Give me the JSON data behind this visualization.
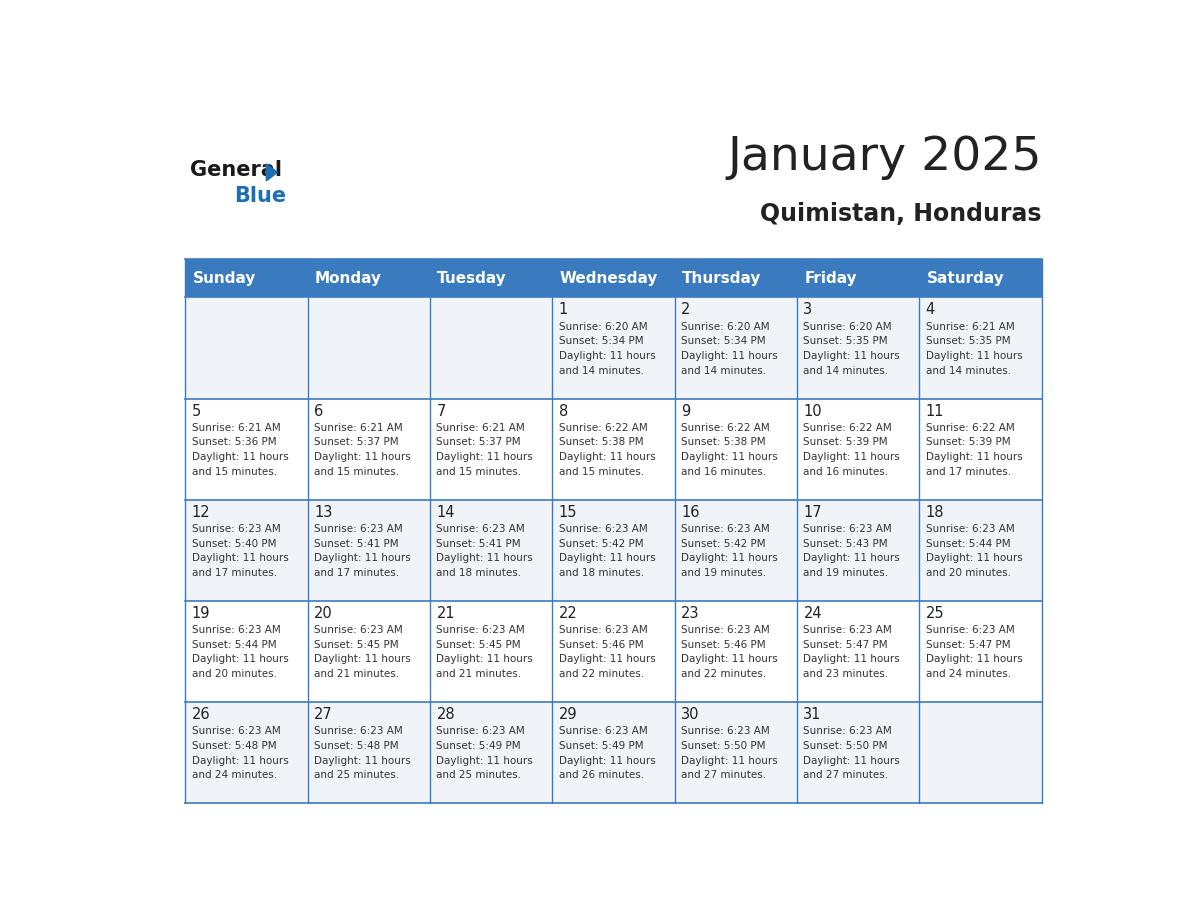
{
  "title": "January 2025",
  "subtitle": "Quimistan, Honduras",
  "header_color": "#3a7bbf",
  "header_text_color": "#ffffff",
  "cell_bg_even": "#f0f4f8",
  "cell_bg_odd": "#ffffff",
  "day_headers": [
    "Sunday",
    "Monday",
    "Tuesday",
    "Wednesday",
    "Thursday",
    "Friday",
    "Saturday"
  ],
  "weeks": [
    [
      {
        "day": "",
        "sunrise": "",
        "sunset": "",
        "daylight": ""
      },
      {
        "day": "",
        "sunrise": "",
        "sunset": "",
        "daylight": ""
      },
      {
        "day": "",
        "sunrise": "",
        "sunset": "",
        "daylight": ""
      },
      {
        "day": "1",
        "sunrise": "6:20 AM",
        "sunset": "5:34 PM",
        "daylight": "11 hours and 14 minutes."
      },
      {
        "day": "2",
        "sunrise": "6:20 AM",
        "sunset": "5:34 PM",
        "daylight": "11 hours and 14 minutes."
      },
      {
        "day": "3",
        "sunrise": "6:20 AM",
        "sunset": "5:35 PM",
        "daylight": "11 hours and 14 minutes."
      },
      {
        "day": "4",
        "sunrise": "6:21 AM",
        "sunset": "5:35 PM",
        "daylight": "11 hours and 14 minutes."
      }
    ],
    [
      {
        "day": "5",
        "sunrise": "6:21 AM",
        "sunset": "5:36 PM",
        "daylight": "11 hours and 15 minutes."
      },
      {
        "day": "6",
        "sunrise": "6:21 AM",
        "sunset": "5:37 PM",
        "daylight": "11 hours and 15 minutes."
      },
      {
        "day": "7",
        "sunrise": "6:21 AM",
        "sunset": "5:37 PM",
        "daylight": "11 hours and 15 minutes."
      },
      {
        "day": "8",
        "sunrise": "6:22 AM",
        "sunset": "5:38 PM",
        "daylight": "11 hours and 15 minutes."
      },
      {
        "day": "9",
        "sunrise": "6:22 AM",
        "sunset": "5:38 PM",
        "daylight": "11 hours and 16 minutes."
      },
      {
        "day": "10",
        "sunrise": "6:22 AM",
        "sunset": "5:39 PM",
        "daylight": "11 hours and 16 minutes."
      },
      {
        "day": "11",
        "sunrise": "6:22 AM",
        "sunset": "5:39 PM",
        "daylight": "11 hours and 17 minutes."
      }
    ],
    [
      {
        "day": "12",
        "sunrise": "6:23 AM",
        "sunset": "5:40 PM",
        "daylight": "11 hours and 17 minutes."
      },
      {
        "day": "13",
        "sunrise": "6:23 AM",
        "sunset": "5:41 PM",
        "daylight": "11 hours and 17 minutes."
      },
      {
        "day": "14",
        "sunrise": "6:23 AM",
        "sunset": "5:41 PM",
        "daylight": "11 hours and 18 minutes."
      },
      {
        "day": "15",
        "sunrise": "6:23 AM",
        "sunset": "5:42 PM",
        "daylight": "11 hours and 18 minutes."
      },
      {
        "day": "16",
        "sunrise": "6:23 AM",
        "sunset": "5:42 PM",
        "daylight": "11 hours and 19 minutes."
      },
      {
        "day": "17",
        "sunrise": "6:23 AM",
        "sunset": "5:43 PM",
        "daylight": "11 hours and 19 minutes."
      },
      {
        "day": "18",
        "sunrise": "6:23 AM",
        "sunset": "5:44 PM",
        "daylight": "11 hours and 20 minutes."
      }
    ],
    [
      {
        "day": "19",
        "sunrise": "6:23 AM",
        "sunset": "5:44 PM",
        "daylight": "11 hours and 20 minutes."
      },
      {
        "day": "20",
        "sunrise": "6:23 AM",
        "sunset": "5:45 PM",
        "daylight": "11 hours and 21 minutes."
      },
      {
        "day": "21",
        "sunrise": "6:23 AM",
        "sunset": "5:45 PM",
        "daylight": "11 hours and 21 minutes."
      },
      {
        "day": "22",
        "sunrise": "6:23 AM",
        "sunset": "5:46 PM",
        "daylight": "11 hours and 22 minutes."
      },
      {
        "day": "23",
        "sunrise": "6:23 AM",
        "sunset": "5:46 PM",
        "daylight": "11 hours and 22 minutes."
      },
      {
        "day": "24",
        "sunrise": "6:23 AM",
        "sunset": "5:47 PM",
        "daylight": "11 hours and 23 minutes."
      },
      {
        "day": "25",
        "sunrise": "6:23 AM",
        "sunset": "5:47 PM",
        "daylight": "11 hours and 24 minutes."
      }
    ],
    [
      {
        "day": "26",
        "sunrise": "6:23 AM",
        "sunset": "5:48 PM",
        "daylight": "11 hours and 24 minutes."
      },
      {
        "day": "27",
        "sunrise": "6:23 AM",
        "sunset": "5:48 PM",
        "daylight": "11 hours and 25 minutes."
      },
      {
        "day": "28",
        "sunrise": "6:23 AM",
        "sunset": "5:49 PM",
        "daylight": "11 hours and 25 minutes."
      },
      {
        "day": "29",
        "sunrise": "6:23 AM",
        "sunset": "5:49 PM",
        "daylight": "11 hours and 26 minutes."
      },
      {
        "day": "30",
        "sunrise": "6:23 AM",
        "sunset": "5:50 PM",
        "daylight": "11 hours and 27 minutes."
      },
      {
        "day": "31",
        "sunrise": "6:23 AM",
        "sunset": "5:50 PM",
        "daylight": "11 hours and 27 minutes."
      },
      {
        "day": "",
        "sunrise": "",
        "sunset": "",
        "daylight": ""
      }
    ]
  ],
  "logo_text_general": "General",
  "logo_text_blue": "Blue",
  "logo_triangle_color": "#1e6eb5",
  "text_color_dark": "#222222",
  "grid_line_color": "#3a7bbf",
  "cell_text_color": "#333333"
}
